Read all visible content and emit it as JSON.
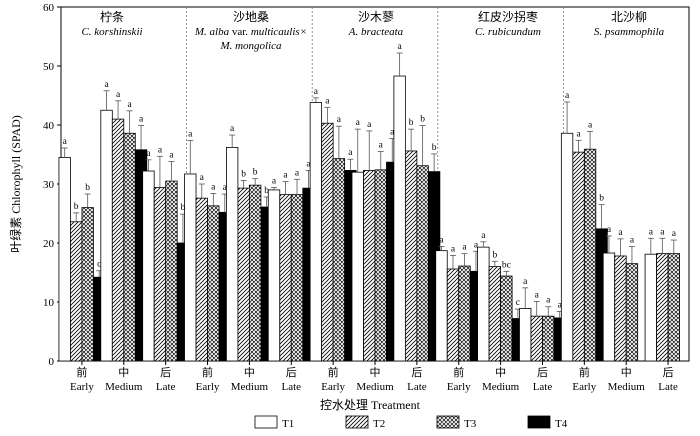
{
  "chart_data": {
    "type": "bar",
    "title": "",
    "ylabel": "叶绿素 Chlorophyll (SPAD)",
    "xlabel": "控水处理 Treatment",
    "ylim": [
      0,
      60
    ],
    "yticks": [
      0,
      10,
      20,
      30,
      40,
      50,
      60
    ],
    "legend": {
      "position": "bottom",
      "entries": [
        {
          "name": "T1",
          "pattern": "white"
        },
        {
          "name": "T2",
          "pattern": "diag"
        },
        {
          "name": "T3",
          "pattern": "cross"
        },
        {
          "name": "T4",
          "pattern": "black"
        }
      ]
    },
    "species": [
      {
        "cn": "柠条",
        "latin": "C. korshinskii",
        "groups": [
          {
            "cn": "前",
            "en": "Early",
            "bars": [
              {
                "t": "T1",
                "value": 34.5,
                "err": 1.6,
                "letter": "a"
              },
              {
                "t": "T2",
                "value": 23.6,
                "err": 1.5,
                "letter": "b"
              },
              {
                "t": "T3",
                "value": 26.0,
                "err": 2.3,
                "letter": "b"
              },
              {
                "t": "T4",
                "value": 14.2,
                "err": 1.1,
                "letter": "c"
              }
            ]
          },
          {
            "cn": "中",
            "en": "Medium",
            "bars": [
              {
                "t": "T1",
                "value": 42.5,
                "err": 3.3,
                "letter": "a"
              },
              {
                "t": "T2",
                "value": 41.0,
                "err": 3.1,
                "letter": "a"
              },
              {
                "t": "T3",
                "value": 38.6,
                "err": 3.8,
                "letter": "a"
              },
              {
                "t": "T4",
                "value": 35.8,
                "err": 4.1,
                "letter": "a"
              }
            ]
          },
          {
            "cn": "后",
            "en": "Late",
            "bars": [
              {
                "t": "T1",
                "value": 32.2,
                "err": 1.9,
                "letter": "a"
              },
              {
                "t": "T2",
                "value": 29.4,
                "err": 5.3,
                "letter": "a"
              },
              {
                "t": "T3",
                "value": 30.5,
                "err": 3.3,
                "letter": "a"
              },
              {
                "t": "T4",
                "value": 20.0,
                "err": 4.9,
                "letter": "b"
              }
            ]
          }
        ]
      },
      {
        "cn": "沙地桑",
        "latin": "M. alba var. multicaulis× M. mongolica",
        "latin_line1_a": "M. alba",
        "latin_line1_b": " var. ",
        "latin_line1_c": "multicaulis×",
        "latin_line2": "M. mongolica",
        "groups": [
          {
            "cn": "前",
            "en": "Early",
            "bars": [
              {
                "t": "T1",
                "value": 31.7,
                "err": 5.7,
                "letter": "a"
              },
              {
                "t": "T2",
                "value": 27.6,
                "err": 2.4,
                "letter": "a"
              },
              {
                "t": "T3",
                "value": 26.3,
                "err": 2.1,
                "letter": "a"
              },
              {
                "t": "T4",
                "value": 25.2,
                "err": 3.1,
                "letter": "a"
              }
            ]
          },
          {
            "cn": "中",
            "en": "Medium",
            "bars": [
              {
                "t": "T1",
                "value": 36.2,
                "err": 2.1,
                "letter": "a"
              },
              {
                "t": "T2",
                "value": 29.3,
                "err": 1.3,
                "letter": "b"
              },
              {
                "t": "T3",
                "value": 29.8,
                "err": 1.1,
                "letter": "b"
              },
              {
                "t": "T4",
                "value": 26.1,
                "err": 1.7,
                "letter": "b"
              }
            ]
          },
          {
            "cn": "后",
            "en": "Late",
            "bars": [
              {
                "t": "T1",
                "value": 29.0,
                "err": 0.4,
                "letter": "a"
              },
              {
                "t": "T2",
                "value": 28.2,
                "err": 2.2,
                "letter": "a"
              },
              {
                "t": "T3",
                "value": 28.2,
                "err": 2.6,
                "letter": "a"
              },
              {
                "t": "T4",
                "value": 29.3,
                "err": 3.0,
                "letter": "a"
              }
            ]
          }
        ]
      },
      {
        "cn": "沙木蓼",
        "latin": "A. bracteata",
        "groups": [
          {
            "cn": "前",
            "en": "Early",
            "bars": [
              {
                "t": "T1",
                "value": 43.8,
                "err": 0.8,
                "letter": "a"
              },
              {
                "t": "T2",
                "value": 40.3,
                "err": 2.7,
                "letter": "a"
              },
              {
                "t": "T3",
                "value": 34.3,
                "err": 5.5,
                "letter": "a"
              },
              {
                "t": "T4",
                "value": 32.3,
                "err": 1.9,
                "letter": "a"
              }
            ]
          },
          {
            "cn": "中",
            "en": "Medium",
            "bars": [
              {
                "t": "T1",
                "value": 32.0,
                "err": 7.3,
                "letter": "a"
              },
              {
                "t": "T2",
                "value": 32.3,
                "err": 6.7,
                "letter": "a"
              },
              {
                "t": "T3",
                "value": 32.4,
                "err": 3.1,
                "letter": "a"
              },
              {
                "t": "T4",
                "value": 33.7,
                "err": 4.0,
                "letter": "a"
              }
            ]
          },
          {
            "cn": "后",
            "en": "Late",
            "bars": [
              {
                "t": "T1",
                "value": 48.3,
                "err": 3.9,
                "letter": "a"
              },
              {
                "t": "T2",
                "value": 35.6,
                "err": 3.7,
                "letter": "b"
              },
              {
                "t": "T3",
                "value": 33.1,
                "err": 6.8,
                "letter": "b"
              },
              {
                "t": "T4",
                "value": 32.1,
                "err": 3.0,
                "letter": "b"
              }
            ]
          }
        ]
      },
      {
        "cn": "红皮沙拐枣",
        "latin": "C. rubicundum",
        "groups": [
          {
            "cn": "前",
            "en": "Early",
            "bars": [
              {
                "t": "T1",
                "value": 18.7,
                "err": 0.7,
                "letter": "a"
              },
              {
                "t": "T2",
                "value": 15.6,
                "err": 2.3,
                "letter": "a"
              },
              {
                "t": "T3",
                "value": 16.1,
                "err": 2.1,
                "letter": "a"
              },
              {
                "t": "T4",
                "value": 15.2,
                "err": 3.4,
                "letter": "a"
              }
            ]
          },
          {
            "cn": "中",
            "en": "Medium",
            "bars": [
              {
                "t": "T1",
                "value": 19.3,
                "err": 0.9,
                "letter": "a"
              },
              {
                "t": "T2",
                "value": 16.0,
                "err": 0.9,
                "letter": "b"
              },
              {
                "t": "T3",
                "value": 14.4,
                "err": 0.8,
                "letter": "bc"
              },
              {
                "t": "T4",
                "value": 7.2,
                "err": 1.6,
                "letter": "c"
              }
            ]
          },
          {
            "cn": "后",
            "en": "Late",
            "bars": [
              {
                "t": "T1",
                "value": 8.9,
                "err": 3.5,
                "letter": "a"
              },
              {
                "t": "T2",
                "value": 7.6,
                "err": 2.5,
                "letter": "a"
              },
              {
                "t": "T3",
                "value": 7.6,
                "err": 1.6,
                "letter": "a"
              },
              {
                "t": "T4",
                "value": 7.3,
                "err": 1.1,
                "letter": "a"
              }
            ]
          }
        ]
      },
      {
        "cn": "北沙柳",
        "latin": "S. psammophila",
        "groups": [
          {
            "cn": "前",
            "en": "Early",
            "bars": [
              {
                "t": "T1",
                "value": 38.6,
                "err": 5.3,
                "letter": "a"
              },
              {
                "t": "T2",
                "value": 35.4,
                "err": 2.0,
                "letter": "a"
              },
              {
                "t": "T3",
                "value": 35.9,
                "err": 3.0,
                "letter": "a"
              },
              {
                "t": "T4",
                "value": 22.4,
                "err": 4.1,
                "letter": "b"
              }
            ]
          },
          {
            "cn": "中",
            "en": "Medium",
            "bars": [
              {
                "t": "T1",
                "value": 18.3,
                "err": 2.9,
                "letter": "a"
              },
              {
                "t": "T2",
                "value": 17.8,
                "err": 2.9,
                "letter": "a"
              },
              {
                "t": "T3",
                "value": 16.5,
                "err": 2.9,
                "letter": "a"
              }
            ]
          },
          {
            "cn": "后",
            "en": "Late",
            "bars": [
              {
                "t": "T1",
                "value": 18.1,
                "err": 2.7,
                "letter": "a"
              },
              {
                "t": "T2",
                "value": 18.2,
                "err": 2.6,
                "letter": "a"
              },
              {
                "t": "T3",
                "value": 18.2,
                "err": 2.3,
                "letter": "a"
              }
            ]
          }
        ]
      }
    ]
  }
}
